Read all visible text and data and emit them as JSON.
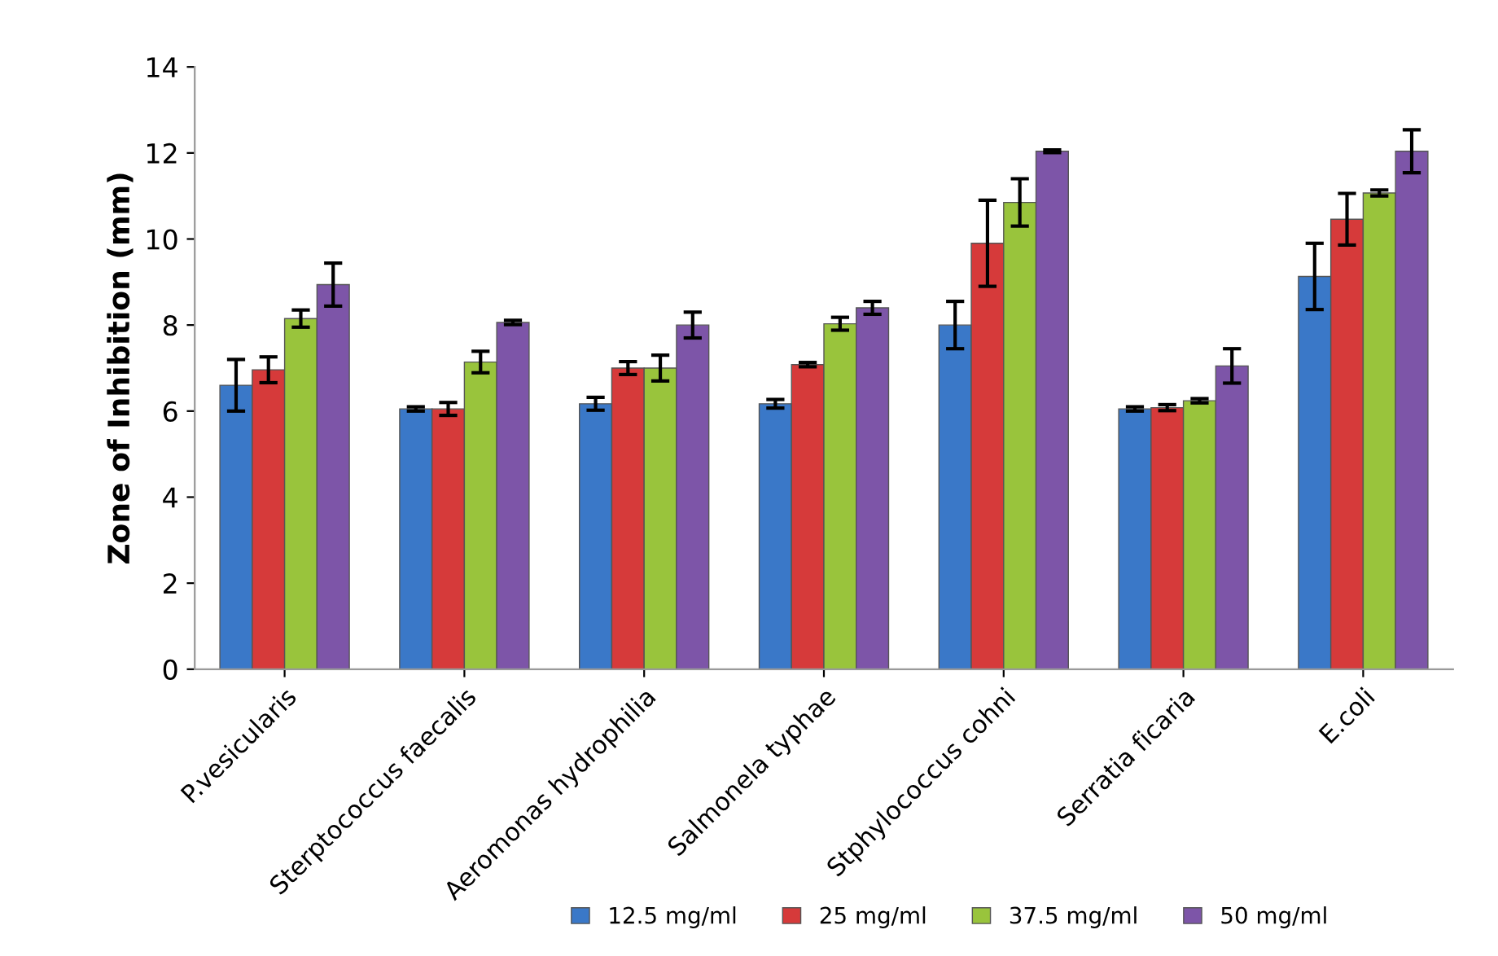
{
  "chart_data": {
    "type": "bar",
    "ylabel": "Zone of Inhibition (mm)",
    "categories": [
      "P.vesicularis",
      "Sterptococcus faecalis",
      "Aeromonas hydrophilia",
      "Salmonela typhae",
      "Stphylococcus cohni",
      "Serratia ficaria",
      "E.coli"
    ],
    "series": [
      {
        "name": "12.5 mg/ml",
        "color": "#3a78c8",
        "values": [
          6.6,
          6.05,
          6.17,
          6.17,
          8.0,
          6.05,
          9.13
        ],
        "errors": [
          0.6,
          0.05,
          0.15,
          0.1,
          0.55,
          0.05,
          0.77
        ]
      },
      {
        "name": "25 mg/ml",
        "color": "#d63a3a",
        "values": [
          6.96,
          6.05,
          7.0,
          7.08,
          9.9,
          6.08,
          10.46
        ],
        "errors": [
          0.3,
          0.15,
          0.15,
          0.05,
          1.0,
          0.07,
          0.6
        ]
      },
      {
        "name": "37.5 mg/ml",
        "color": "#99c43c",
        "values": [
          8.15,
          7.14,
          7.0,
          8.03,
          10.85,
          6.24,
          11.07
        ],
        "errors": [
          0.2,
          0.25,
          0.3,
          0.15,
          0.55,
          0.05,
          0.07
        ]
      },
      {
        "name": "50 mg/ml",
        "color": "#7d55a8",
        "values": [
          8.94,
          8.06,
          8.0,
          8.4,
          12.04,
          7.05,
          12.04
        ],
        "errors": [
          0.5,
          0.05,
          0.3,
          0.15,
          0.03,
          0.4,
          0.5
        ]
      }
    ],
    "ylim": [
      0,
      14
    ],
    "yticks": [
      0,
      2,
      4,
      6,
      8,
      10,
      12,
      14
    ],
    "grid": false,
    "legend": "bottom"
  }
}
